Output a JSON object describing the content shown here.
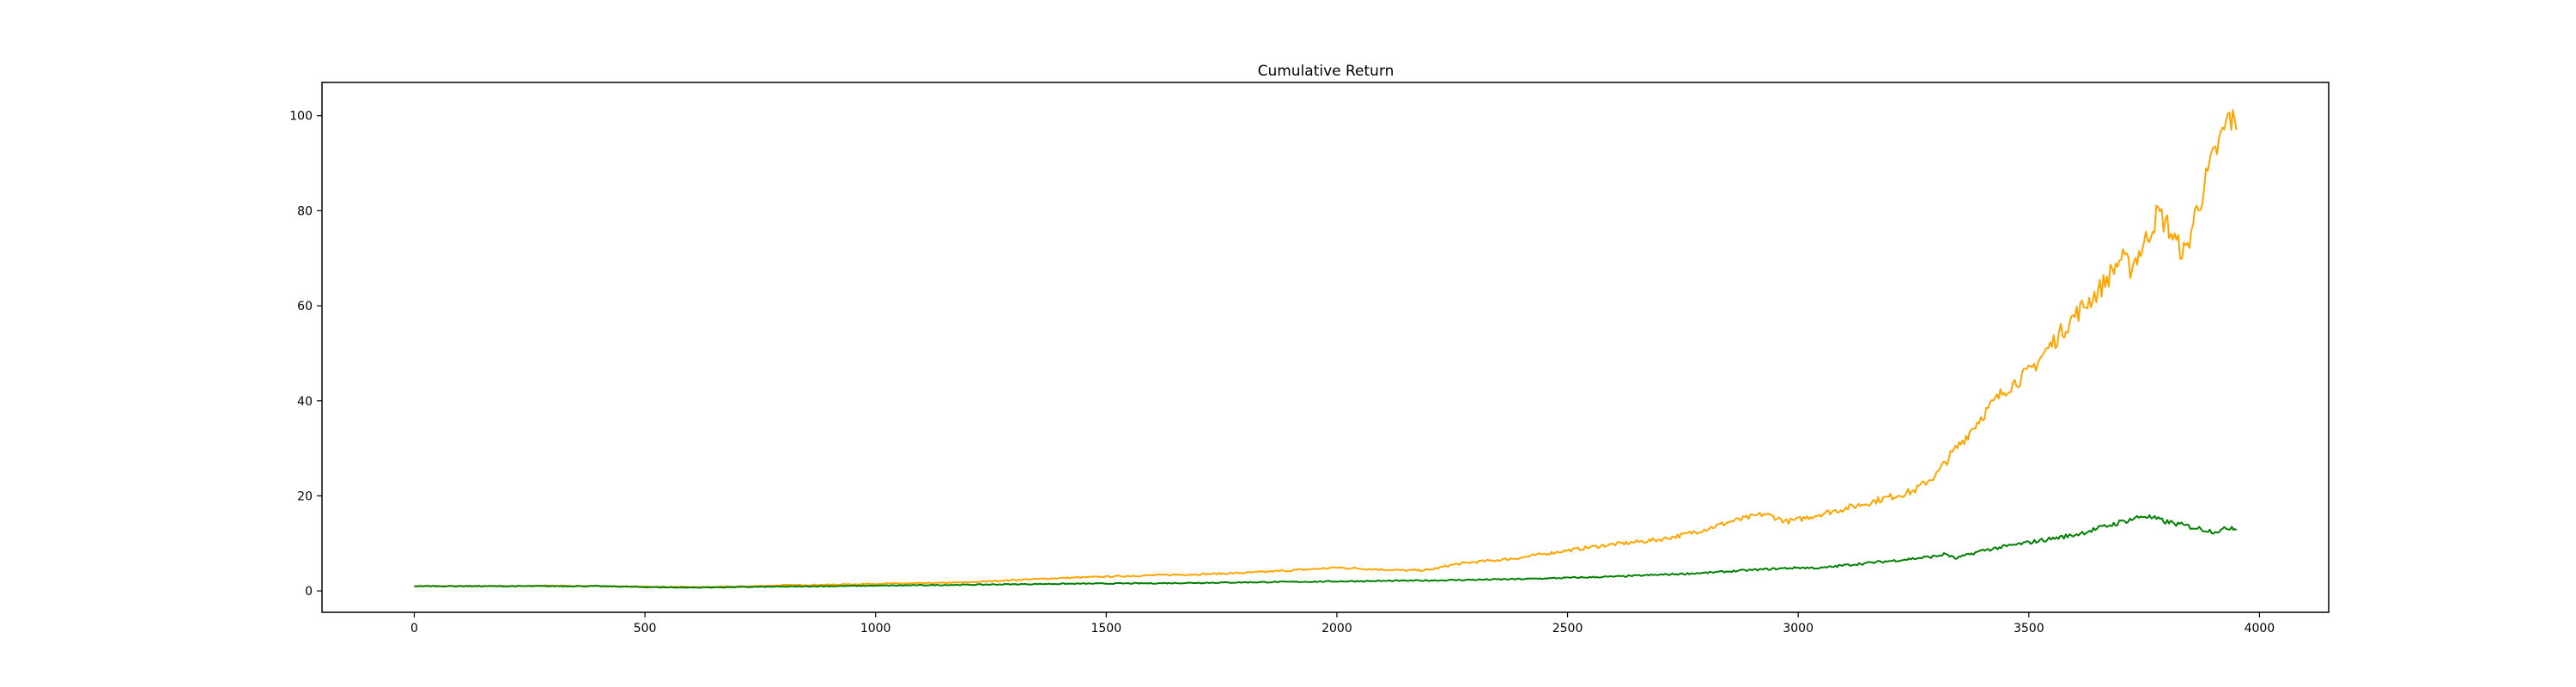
{
  "chart_data": {
    "type": "line",
    "title": "Cumulative Return",
    "xlabel": "",
    "ylabel": "",
    "xlim": [
      -200,
      4150
    ],
    "ylim": [
      -4.5,
      107
    ],
    "grid": false,
    "legend": "none",
    "x_ticks": [
      0,
      500,
      1000,
      1500,
      2000,
      2500,
      3000,
      3500,
      4000
    ],
    "y_ticks": [
      0,
      20,
      40,
      60,
      80,
      100
    ],
    "series": [
      {
        "color": "#ffa500",
        "x": [
          0,
          100,
          200,
          300,
          400,
          500,
          600,
          700,
          800,
          900,
          1000,
          1100,
          1200,
          1300,
          1400,
          1500,
          1600,
          1700,
          1800,
          1900,
          2000,
          2050,
          2100,
          2150,
          2200,
          2250,
          2300,
          2350,
          2400,
          2450,
          2500,
          2550,
          2600,
          2650,
          2700,
          2750,
          2800,
          2850,
          2900,
          2925,
          2950,
          2975,
          3000,
          3050,
          3100,
          3150,
          3200,
          3250,
          3300,
          3330,
          3360,
          3400,
          3450,
          3500,
          3550,
          3600,
          3650,
          3700,
          3720,
          3750,
          3780,
          3800,
          3820,
          3840,
          3860,
          3880,
          3900,
          3920,
          3935,
          3950
        ],
        "values": [
          1.0,
          1.0,
          1.0,
          1.1,
          1.0,
          0.9,
          0.8,
          0.9,
          1.2,
          1.3,
          1.5,
          1.6,
          1.8,
          2.3,
          2.7,
          3.0,
          3.3,
          3.5,
          3.8,
          4.3,
          4.9,
          4.7,
          4.5,
          4.3,
          4.4,
          5.5,
          6.1,
          6.5,
          7.0,
          7.8,
          8.5,
          9.2,
          9.8,
          10.3,
          10.8,
          11.8,
          13.0,
          14.5,
          15.6,
          16.2,
          15.5,
          14.6,
          15.0,
          16.2,
          17.3,
          18.5,
          19.8,
          21.0,
          24.5,
          28.5,
          32.0,
          37.0,
          42.5,
          46.0,
          52.0,
          58.0,
          63.0,
          70.0,
          68.0,
          73.0,
          79.5,
          77.0,
          73.0,
          71.0,
          79.0,
          85.0,
          91.0,
          96.0,
          100.0,
          97.0
        ]
      },
      {
        "color": "#008000",
        "x": [
          0,
          200,
          400,
          500,
          600,
          800,
          1000,
          1200,
          1400,
          1600,
          1800,
          2000,
          2200,
          2400,
          2600,
          2800,
          2900,
          3000,
          3050,
          3100,
          3200,
          3300,
          3320,
          3340,
          3400,
          3500,
          3600,
          3700,
          3750,
          3800,
          3850,
          3900,
          3920,
          3940,
          3950
        ],
        "values": [
          1.0,
          1.0,
          1.0,
          0.8,
          0.7,
          0.9,
          1.1,
          1.3,
          1.5,
          1.6,
          1.8,
          2.0,
          2.2,
          2.5,
          3.0,
          3.8,
          4.4,
          4.9,
          4.8,
          5.4,
          6.3,
          7.3,
          7.8,
          6.8,
          8.5,
          10.2,
          11.8,
          14.5,
          15.8,
          14.5,
          13.5,
          12.5,
          12.8,
          13.5,
          12.8
        ]
      }
    ]
  }
}
